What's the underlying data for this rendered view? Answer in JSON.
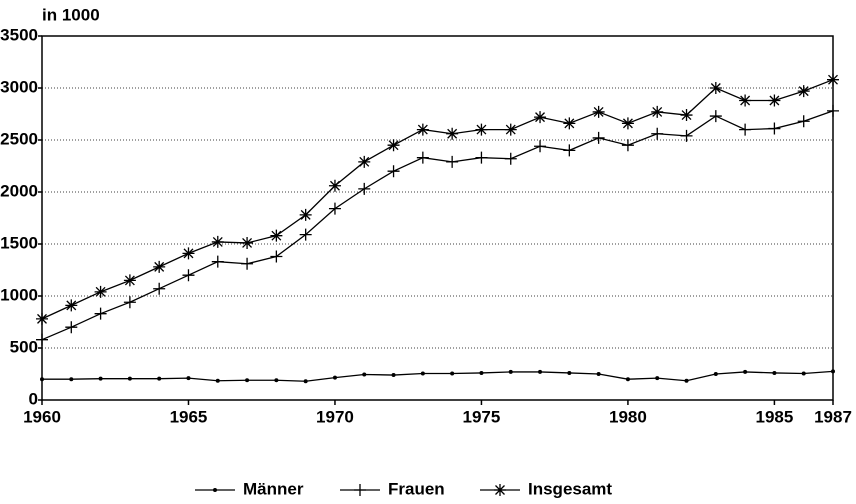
{
  "chart_data": {
    "type": "line",
    "y_label": "in 1000",
    "x": [
      1960,
      1961,
      1962,
      1963,
      1964,
      1965,
      1966,
      1967,
      1968,
      1969,
      1970,
      1971,
      1972,
      1973,
      1974,
      1975,
      1976,
      1977,
      1978,
      1979,
      1980,
      1981,
      1982,
      1983,
      1984,
      1985,
      1986,
      1987
    ],
    "series": [
      {
        "name": "Männer",
        "color": "#000000",
        "marker": "dot",
        "values": [
          200,
          200,
          205,
          205,
          205,
          210,
          185,
          190,
          190,
          180,
          215,
          245,
          240,
          255,
          255,
          260,
          270,
          270,
          260,
          250,
          200,
          210,
          185,
          250,
          270,
          260,
          255,
          275
        ]
      },
      {
        "name": "Frauen",
        "color": "#000000",
        "marker": "plus",
        "values": [
          580,
          700,
          830,
          940,
          1070,
          1200,
          1330,
          1310,
          1380,
          1590,
          1840,
          2030,
          2200,
          2330,
          2290,
          2330,
          2320,
          2440,
          2400,
          2520,
          2450,
          2560,
          2540,
          2730,
          2600,
          2610,
          2680,
          2780
        ]
      },
      {
        "name": "Insgesamt",
        "color": "#000000",
        "marker": "star",
        "values": [
          780,
          910,
          1040,
          1150,
          1280,
          1410,
          1520,
          1510,
          1580,
          1780,
          2060,
          2290,
          2450,
          2600,
          2560,
          2600,
          2600,
          2720,
          2660,
          2770,
          2660,
          2770,
          2740,
          3000,
          2880,
          2880,
          2970,
          3080
        ]
      }
    ],
    "xlim": [
      1960,
      1987
    ],
    "xticks": [
      1960,
      1965,
      1970,
      1975,
      1980,
      1985,
      1987
    ],
    "ylim": [
      0,
      3500
    ],
    "yticks": [
      0,
      500,
      1000,
      1500,
      2000,
      2500,
      3000,
      3500
    ],
    "grid": true,
    "legend": "bottom"
  }
}
